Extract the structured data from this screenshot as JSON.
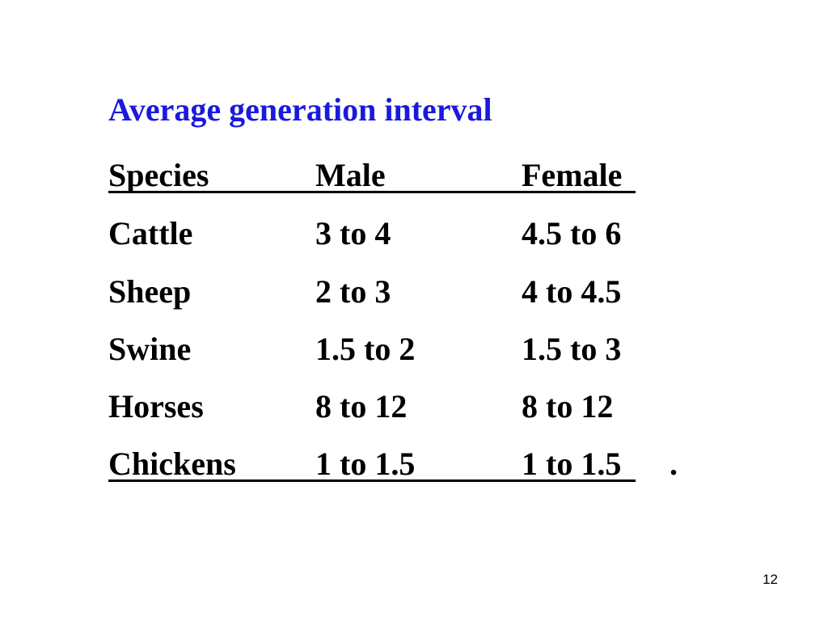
{
  "slide": {
    "title": "Average generation interval",
    "title_color": "#1a1adc",
    "page_number": "12"
  },
  "table": {
    "headers": [
      "Species",
      "Male",
      "Female"
    ],
    "rows": [
      [
        "Cattle",
        "3 to 4",
        "4.5 to 6"
      ],
      [
        "Sheep",
        "2 to 3",
        "4 to 4.5"
      ],
      [
        "Swine",
        "1.5 to 2",
        "1.5 to 3"
      ],
      [
        "Horses",
        "8 to 12",
        "8 to 12"
      ],
      [
        "Chickens",
        "1 to 1.5",
        "1 to 1.5"
      ]
    ],
    "trailing_mark": "."
  }
}
